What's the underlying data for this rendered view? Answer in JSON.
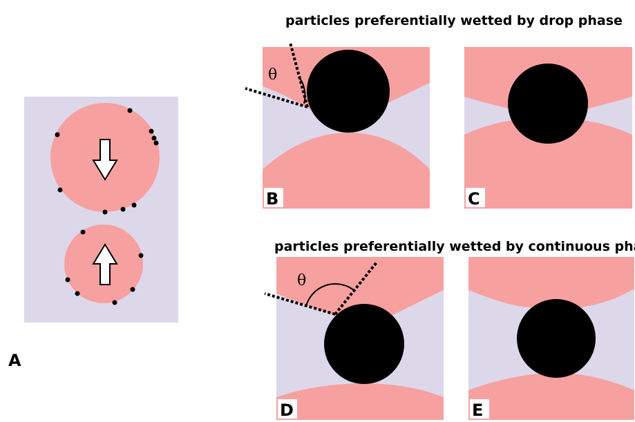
{
  "top_caption": "particles preferentially wetted by drop phase",
  "bottom_caption": "particles preferentially wetted by continuous phase",
  "panels": [
    {
      "label": "A"
    },
    {
      "label": "B",
      "angle": "θ"
    },
    {
      "label": "C"
    },
    {
      "label": "D",
      "angle": "θ"
    },
    {
      "label": "E"
    }
  ]
}
